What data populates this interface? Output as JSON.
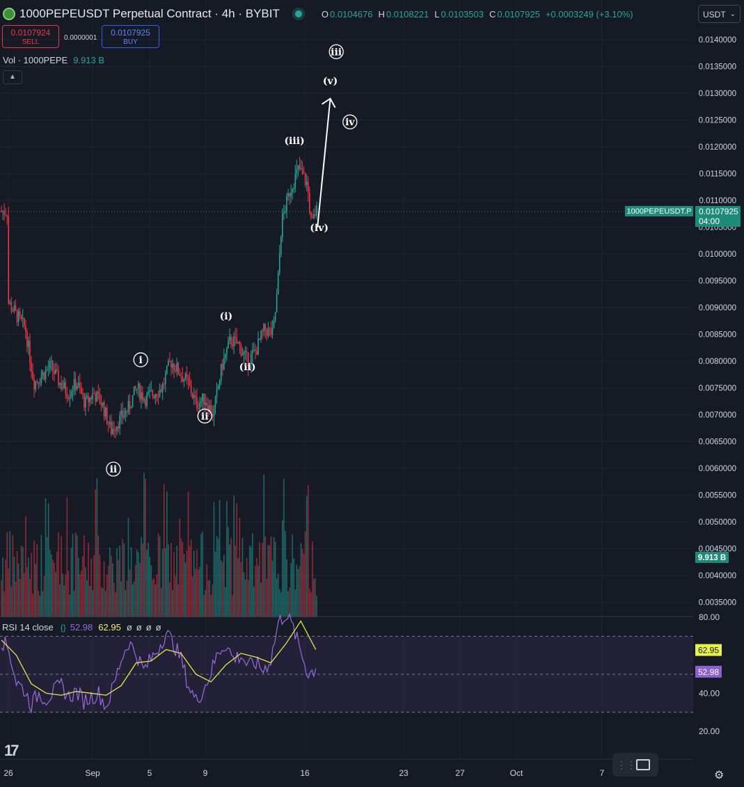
{
  "header": {
    "title": "1000PEPEUSDT Perpetual Contract · 4h · BYBIT",
    "ohlc": [
      {
        "k": "O",
        "v": "0.0104676"
      },
      {
        "k": "H",
        "v": "0.0108221"
      },
      {
        "k": "L",
        "v": "0.0103503"
      },
      {
        "k": "C",
        "v": "0.0107925"
      }
    ],
    "change": "+0.0003249 (+3.10%)"
  },
  "trade": {
    "sell_price": "0.0107924",
    "sell_label": "SELL",
    "spread": "0.0000001",
    "buy_price": "0.0107925",
    "buy_label": "BUY"
  },
  "volume_legend": {
    "label": "Vol · 1000PEPE",
    "value": "9.913 B"
  },
  "currency": {
    "selected": "USDT"
  },
  "price_tag": {
    "symbol": "1000PEPEUSDT.P",
    "price": "0.0107925",
    "countdown": "04:00"
  },
  "volume_tag": "9.913 B",
  "rsi_legend": {
    "label": "RSI 14 close",
    "brace": "{}",
    "rsi_value": "52.98",
    "ma_value": "62.95",
    "na": [
      "ø",
      "ø",
      "ø",
      "ø"
    ]
  },
  "colors": {
    "up": "#26a69a",
    "down": "#f23645",
    "rsi": "#9c6ade",
    "rsi_ma": "#e6e84a",
    "background": "#161a25"
  },
  "icons": [
    "tradingview-logo",
    "screenshot-icon",
    "settings-icon",
    "collapse-icon",
    "chevron-down-icon"
  ],
  "chart_data": [
    {
      "type": "candlestick",
      "title": "1000PEPEUSDT Perpetual Contract · 4h · BYBIT",
      "y_ticks": [
        "0.0140000",
        "0.0135000",
        "0.0130000",
        "0.0125000",
        "0.0120000",
        "0.0115000",
        "0.0110000",
        "0.0105000",
        "0.0100000",
        "0.0095000",
        "0.0090000",
        "0.0085000",
        "0.0080000",
        "0.0075000",
        "0.0070000",
        "0.0065000",
        "0.0060000",
        "0.0055000",
        "0.0050000",
        "0.0045000",
        "0.0040000",
        "0.0035000"
      ],
      "ylim": [
        0.00325,
        0.01415
      ],
      "x_ticks": [
        "26",
        "Sep",
        "5",
        "9",
        "16",
        "23",
        "27",
        "Oct",
        "7"
      ],
      "last_price": 0.0107925,
      "path_points": [
        [
          "Aug 26",
          0.0091
        ],
        [
          "Aug 28",
          0.0086
        ],
        [
          "Aug 29",
          0.0076
        ],
        [
          "Aug 31",
          0.0079
        ],
        [
          "Sep 1",
          0.0076
        ],
        [
          "Sep 2",
          0.0074
        ],
        [
          "Sep 3",
          0.0076
        ],
        [
          "Sep 4",
          0.0072
        ],
        [
          "Sep 5",
          0.0074
        ],
        [
          "Sep 6",
          0.0072
        ],
        [
          "Sep 7",
          0.0067
        ],
        [
          "Sep 8",
          0.0069
        ],
        [
          "Sep 9",
          0.0071
        ],
        [
          "Sep 10",
          0.0075
        ],
        [
          "Sep 11",
          0.0073
        ],
        [
          "Sep 12",
          0.0074
        ],
        [
          "Sep 13",
          0.0075
        ],
        [
          "Sep 14",
          0.008
        ],
        [
          "Sep 15",
          0.0078
        ],
        [
          "Sep 16",
          0.0076
        ],
        [
          "Sep 17",
          0.0072
        ],
        [
          "Sep 18",
          0.0073
        ],
        [
          "Sep 19",
          0.007
        ],
        [
          "Sep 20",
          0.0079
        ],
        [
          "Sep 21",
          0.0084
        ],
        [
          "Sep 22",
          0.0083
        ],
        [
          "Sep 23",
          0.008
        ],
        [
          "Sep 24",
          0.0082
        ],
        [
          "Sep 25",
          0.0086
        ],
        [
          "Sep 26",
          0.0085
        ],
        [
          "Sep 26.5",
          0.0093
        ],
        [
          "Sep 27",
          0.0106
        ],
        [
          "Sep 28",
          0.0112
        ],
        [
          "Sep 29",
          0.0116
        ],
        [
          "Sep 30",
          0.0113
        ],
        [
          "Sep 30.5",
          0.0105
        ],
        [
          "Oct 1",
          0.0108
        ]
      ],
      "wave_labels": [
        {
          "text": "(iii)",
          "circled": false,
          "date": "Sep 28.5",
          "price": 0.01205
        },
        {
          "text": "(iv)",
          "circled": false,
          "date": "Oct 1.4",
          "price": 0.01043
        },
        {
          "text": "(v)",
          "circled": false,
          "date": "Oct 2.7",
          "price": 0.01317
        },
        {
          "text": "iii",
          "circled": true,
          "date": "Oct 3.4",
          "price": 0.01371
        },
        {
          "text": "iv",
          "circled": true,
          "date": "Oct 5",
          "price": 0.0124
        },
        {
          "text": "(i)",
          "circled": false,
          "date": "Sep 20.5",
          "price": 0.00878
        },
        {
          "text": "(ii)",
          "circled": false,
          "date": "Sep 23",
          "price": 0.00783
        },
        {
          "text": "i",
          "circled": true,
          "date": "Sep 10.5",
          "price": 0.00796
        },
        {
          "text": "ii",
          "circled": true,
          "date": "Sep 18",
          "price": 0.00691
        },
        {
          "text": "ii",
          "circled": true,
          "date": "Sep 7.3",
          "price": 0.00592
        }
      ],
      "projection_arrow": {
        "from": [
          "Oct 1.2",
          0.0105
        ],
        "to": [
          "Oct 2.7",
          0.0129
        ]
      }
    },
    {
      "type": "bar",
      "title": "Vol · 1000PEPE",
      "last_value": "9.913 B",
      "series": [
        {
          "name": "Vol · 1000PEPE",
          "values": []
        }
      ]
    },
    {
      "type": "line",
      "title": "RSI 14 close",
      "y_ticks": [
        "80.00",
        "40.00",
        "20.00"
      ],
      "ylim": [
        10,
        80
      ],
      "band": [
        30,
        70
      ],
      "midline": 50,
      "series": [
        {
          "name": "RSI",
          "last": 52.98,
          "points": [
            [
              0,
              68
            ],
            [
              1,
              63
            ],
            [
              2,
              46
            ],
            [
              3,
              42
            ],
            [
              4,
              34
            ],
            [
              5,
              40
            ],
            [
              6,
              37
            ],
            [
              7,
              41
            ],
            [
              8,
              44
            ],
            [
              9,
              38
            ],
            [
              10,
              41
            ],
            [
              11,
              36
            ],
            [
              12,
              38
            ],
            [
              13,
              40
            ],
            [
              14,
              33
            ],
            [
              15,
              44
            ],
            [
              16,
              58
            ],
            [
              17,
              67
            ],
            [
              18,
              61
            ],
            [
              19,
              52
            ],
            [
              20,
              58
            ],
            [
              21,
              64
            ],
            [
              22,
              72
            ],
            [
              23,
              66
            ],
            [
              24,
              58
            ],
            [
              25,
              44
            ],
            [
              26,
              36
            ],
            [
              27,
              42
            ],
            [
              28,
              51
            ],
            [
              29,
              62
            ],
            [
              30,
              66
            ],
            [
              31,
              58
            ],
            [
              32,
              60
            ],
            [
              33,
              54
            ],
            [
              34,
              56
            ],
            [
              35,
              52
            ],
            [
              36,
              58
            ],
            [
              37,
              77
            ],
            [
              38,
              82
            ],
            [
              39,
              74
            ],
            [
              40,
              62
            ],
            [
              41,
              50
            ],
            [
              42,
              52.98
            ]
          ]
        },
        {
          "name": "RSI-based MA",
          "last": 62.95,
          "points": [
            [
              0,
              68
            ],
            [
              2,
              60
            ],
            [
              4,
              45
            ],
            [
              6,
              40
            ],
            [
              8,
              39
            ],
            [
              10,
              41
            ],
            [
              12,
              40
            ],
            [
              14,
              39
            ],
            [
              16,
              44
            ],
            [
              18,
              56
            ],
            [
              20,
              57
            ],
            [
              22,
              63
            ],
            [
              24,
              61
            ],
            [
              26,
              50
            ],
            [
              28,
              46
            ],
            [
              30,
              55
            ],
            [
              32,
              61
            ],
            [
              34,
              59
            ],
            [
              36,
              56
            ],
            [
              38,
              66
            ],
            [
              40,
              78
            ],
            [
              42,
              62.95
            ]
          ]
        }
      ]
    }
  ]
}
